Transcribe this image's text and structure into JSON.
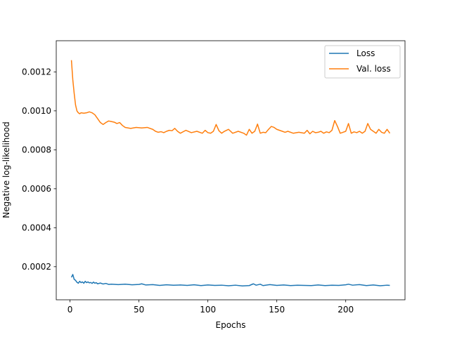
{
  "chart_data": {
    "type": "line",
    "title": "",
    "xlabel": "Epochs",
    "ylabel": "Negative log-likelihood",
    "xlim": [
      -10,
      243
    ],
    "ylim": [
      3e-05,
      0.00136
    ],
    "xticks": [
      0,
      50,
      100,
      150,
      200
    ],
    "xtick_labels": [
      "0",
      "50",
      "100",
      "150",
      "200"
    ],
    "yticks": [
      0.0002,
      0.0004,
      0.0006,
      0.0008,
      0.001,
      0.0012
    ],
    "ytick_labels": [
      "0.0002",
      "0.0004",
      "0.0006",
      "0.0008",
      "0.0010",
      "0.0012"
    ],
    "grid": false,
    "legend_position": "upper right",
    "series": [
      {
        "name": "Loss",
        "color": "#1f77b4",
        "x": [
          1,
          2,
          3,
          4,
          5,
          6,
          7,
          8,
          9,
          10,
          11,
          12,
          13,
          14,
          15,
          16,
          17,
          18,
          19,
          20,
          22,
          24,
          26,
          28,
          30,
          35,
          40,
          45,
          50,
          52,
          55,
          60,
          65,
          70,
          75,
          80,
          85,
          90,
          95,
          100,
          105,
          110,
          115,
          120,
          125,
          130,
          133,
          135,
          138,
          140,
          145,
          150,
          155,
          160,
          165,
          170,
          175,
          180,
          185,
          190,
          195,
          200,
          202,
          205,
          210,
          215,
          220,
          225,
          230,
          232
        ],
        "y": [
          0.000145,
          0.00016,
          0.000135,
          0.00013,
          0.00012,
          0.000115,
          0.000125,
          0.000118,
          0.000122,
          0.000115,
          0.000125,
          0.000118,
          0.000122,
          0.000117,
          0.000119,
          0.000114,
          0.000121,
          0.000115,
          0.000118,
          0.000112,
          0.000116,
          0.000111,
          0.000114,
          0.000109,
          0.00011,
          0.000108,
          0.00011,
          0.000107,
          0.000109,
          0.000112,
          0.000106,
          0.000108,
          0.000104,
          0.000107,
          0.000105,
          0.000106,
          0.000104,
          0.000107,
          0.000103,
          0.000106,
          0.000104,
          0.000105,
          0.000102,
          0.000105,
          0.000101,
          0.000103,
          0.000112,
          0.000105,
          0.00011,
          0.000103,
          0.000108,
          0.000104,
          0.000106,
          0.000103,
          0.000105,
          0.000104,
          0.000103,
          0.000106,
          0.000103,
          0.000105,
          0.000104,
          0.000107,
          0.00011,
          0.000105,
          0.000108,
          0.000103,
          0.000106,
          0.000102,
          0.000105,
          0.000104
        ]
      },
      {
        "name": "Val. loss",
        "color": "#ff7f0e",
        "x": [
          1,
          2,
          3,
          4,
          5,
          6,
          7,
          8,
          10,
          12,
          14,
          16,
          18,
          20,
          22,
          24,
          26,
          28,
          30,
          32,
          34,
          36,
          38,
          40,
          44,
          48,
          52,
          56,
          60,
          62,
          64,
          66,
          68,
          70,
          72,
          74,
          76,
          78,
          80,
          84,
          88,
          92,
          96,
          98,
          100,
          102,
          104,
          106,
          108,
          110,
          112,
          115,
          118,
          122,
          126,
          128,
          130,
          132,
          134,
          136,
          138,
          140,
          142,
          144,
          146,
          148,
          150,
          152,
          154,
          156,
          158,
          162,
          166,
          170,
          172,
          174,
          176,
          178,
          180,
          182,
          184,
          186,
          188,
          190,
          192,
          194,
          196,
          198,
          200,
          202,
          204,
          206,
          208,
          210,
          212,
          214,
          216,
          218,
          220,
          222,
          224,
          226,
          228,
          230,
          232
        ],
        "y": [
          0.00126,
          0.00116,
          0.00109,
          0.00103,
          0.001,
          0.00099,
          0.000985,
          0.00099,
          0.000988,
          0.00099,
          0.000995,
          0.00099,
          0.00098,
          0.00096,
          0.00094,
          0.00093,
          0.00094,
          0.000948,
          0.000945,
          0.000942,
          0.000935,
          0.00094,
          0.000925,
          0.000915,
          0.00091,
          0.000915,
          0.000912,
          0.000915,
          0.000905,
          0.000895,
          0.00089,
          0.000893,
          0.000888,
          0.000895,
          0.0009,
          0.000898,
          0.00091,
          0.000895,
          0.000885,
          0.0009,
          0.000888,
          0.000895,
          0.000885,
          0.0009,
          0.000888,
          0.000885,
          0.000895,
          0.00093,
          0.000898,
          0.000885,
          0.000895,
          0.000905,
          0.000885,
          0.000895,
          0.000885,
          0.000875,
          0.000905,
          0.000885,
          0.000895,
          0.000932,
          0.000885,
          0.00089,
          0.000888,
          0.000905,
          0.00092,
          0.000915,
          0.000905,
          0.0009,
          0.000895,
          0.00089,
          0.000895,
          0.000885,
          0.00089,
          0.000885,
          0.0009,
          0.000882,
          0.000895,
          0.000888,
          0.00089,
          0.000895,
          0.000885,
          0.000892,
          0.000888,
          0.0009,
          0.00095,
          0.00092,
          0.000885,
          0.00089,
          0.000895,
          0.000935,
          0.000885,
          0.000892,
          0.000888,
          0.000895,
          0.000885,
          0.000895,
          0.000935,
          0.000905,
          0.000895,
          0.000885,
          0.000905,
          0.00089,
          0.000885,
          0.000905,
          0.000885
        ]
      }
    ]
  }
}
